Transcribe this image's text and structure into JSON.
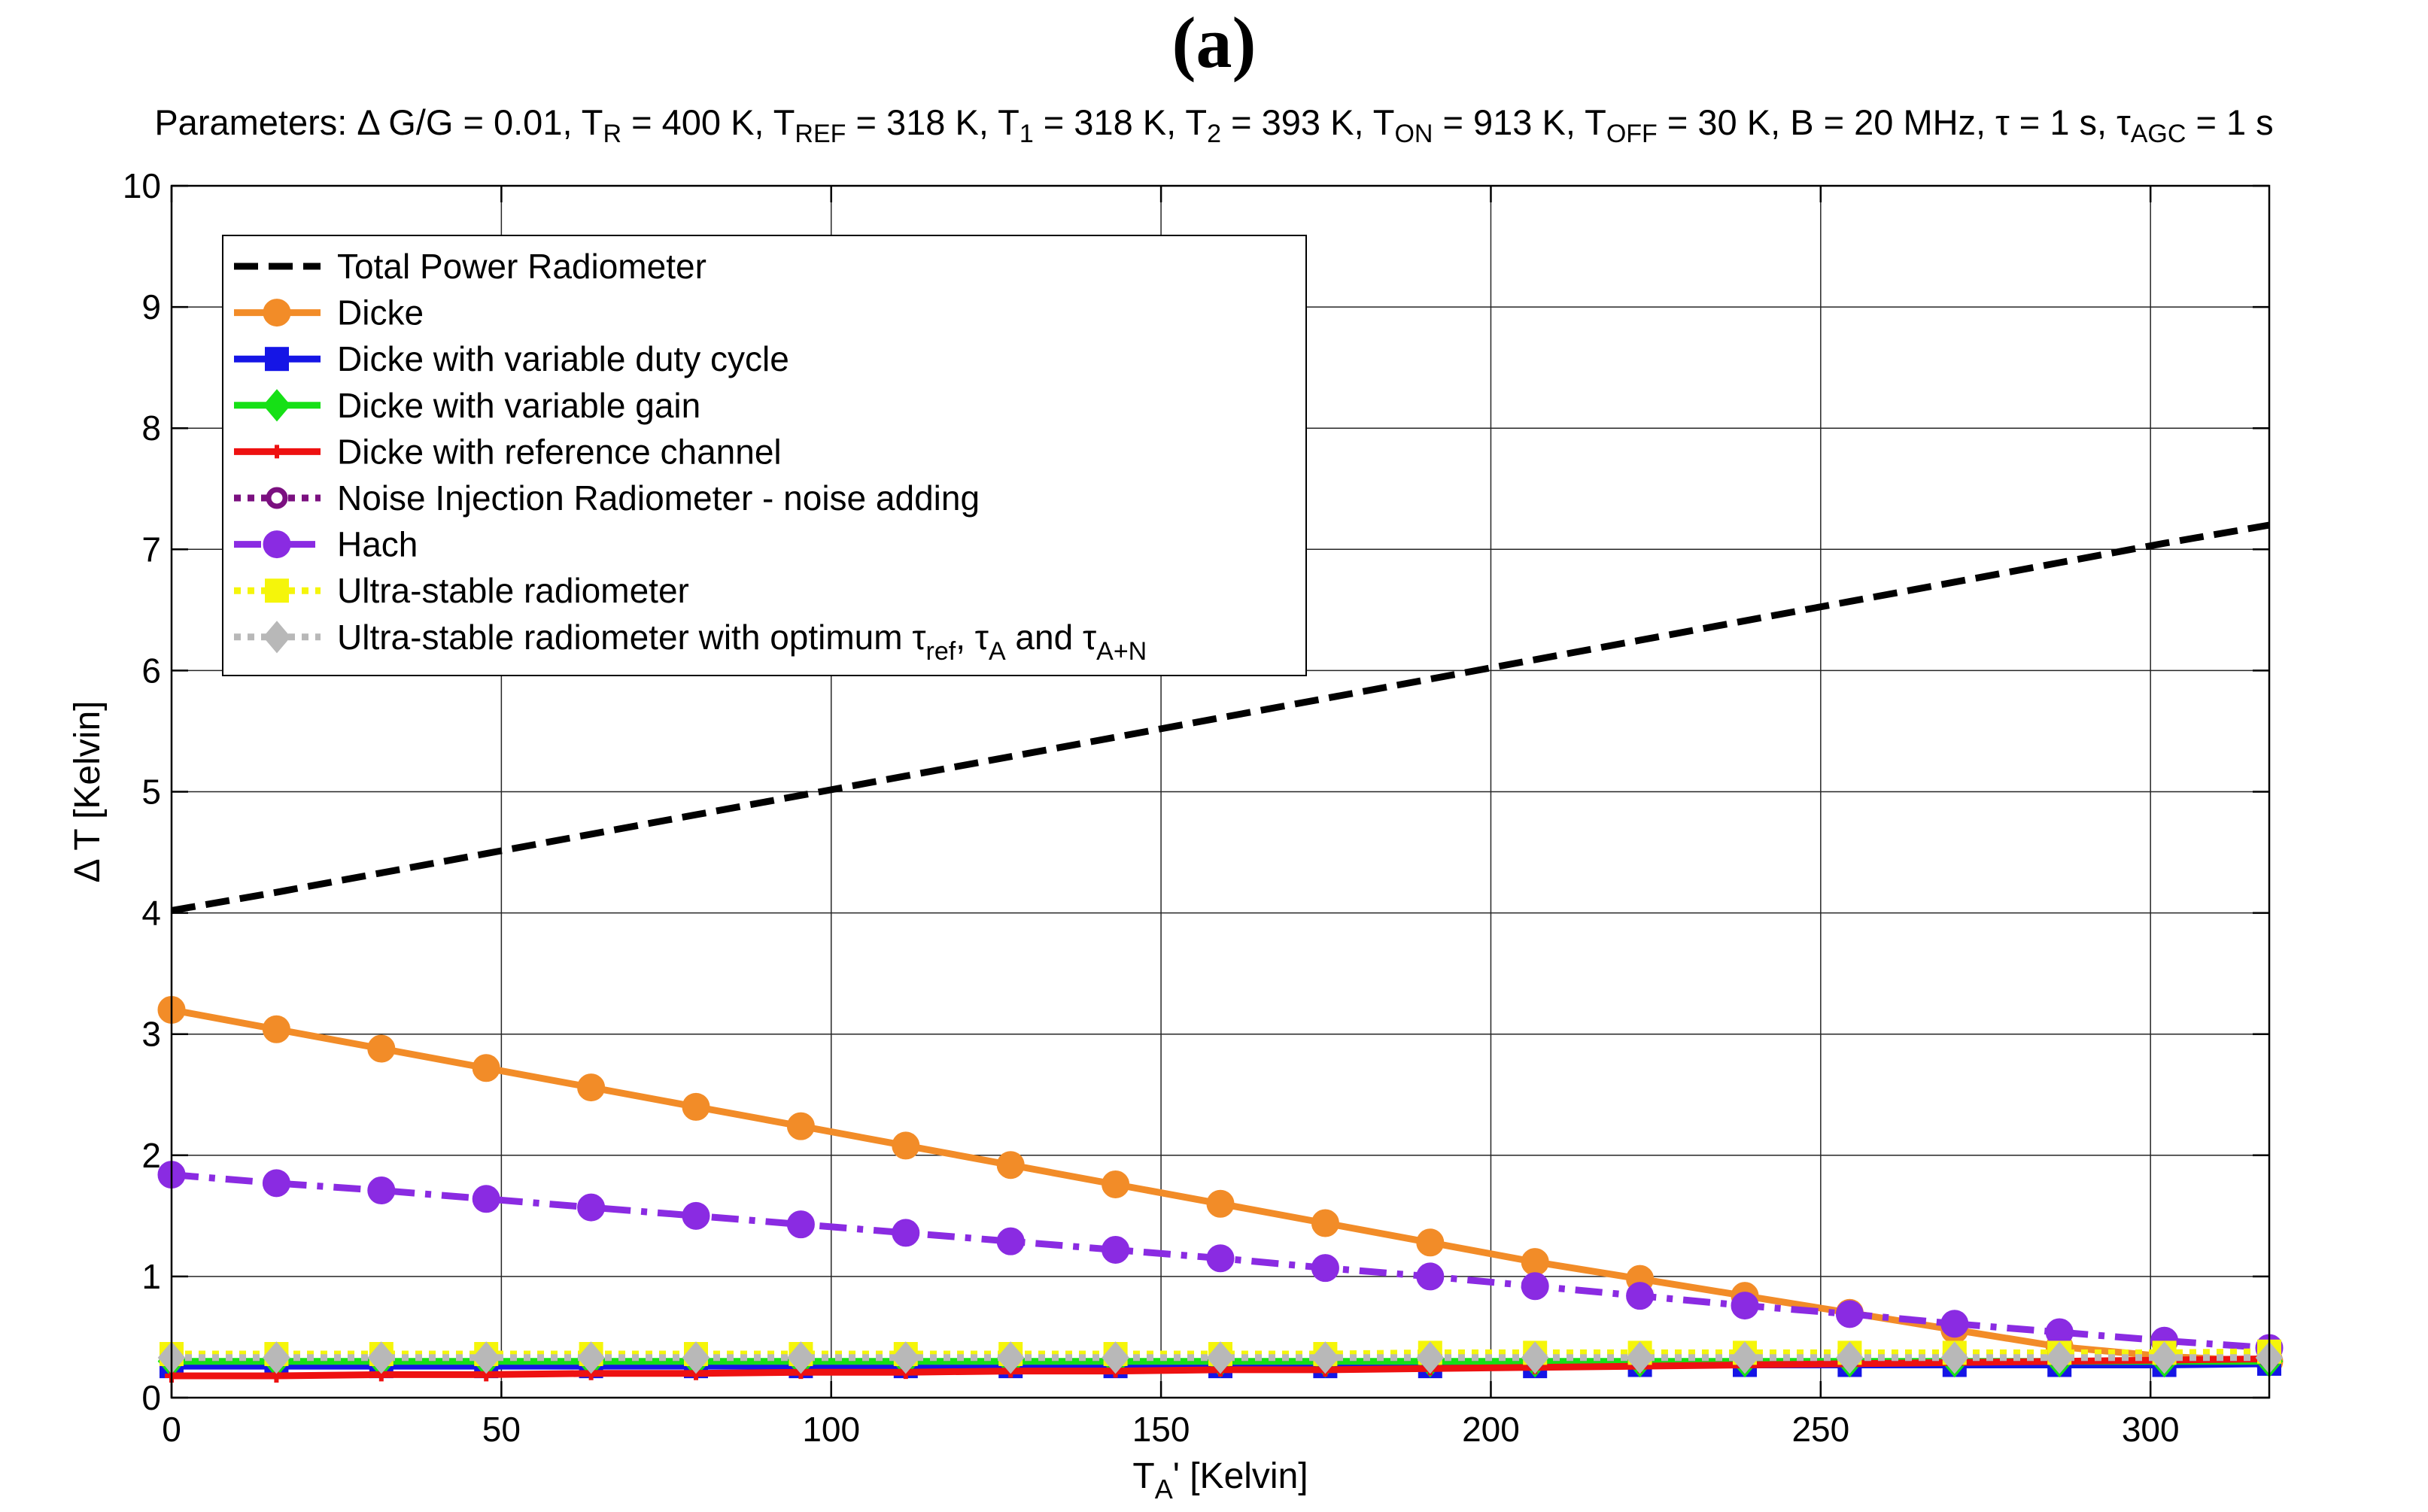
{
  "figure": {
    "panel_label": "(a)",
    "parameters": {
      "prefix": "Parameters: ",
      "items": [
        {
          "sym": "Δ G/G",
          "sub": "",
          "val": " = 0.01"
        },
        {
          "sym": "T",
          "sub": "R",
          "val": " = 400 K"
        },
        {
          "sym": "T",
          "sub": "REF",
          "val": " = 318 K"
        },
        {
          "sym": "T",
          "sub": "1",
          "val": " = 318 K"
        },
        {
          "sym": "T",
          "sub": "2",
          "val": " = 393 K"
        },
        {
          "sym": "T",
          "sub": "ON",
          "val": " = 913 K"
        },
        {
          "sym": "T",
          "sub": "OFF",
          "val": " = 30 K"
        },
        {
          "sym": "B",
          "sub": "",
          "val": " = 20 MHz"
        },
        {
          "sym": "τ",
          "sub": "",
          "val": " = 1 s"
        },
        {
          "sym": "τ",
          "sub": "AGC",
          "val": " = 1 s"
        }
      ]
    }
  },
  "chart_data": {
    "type": "line",
    "title": "(a)",
    "xlabel": {
      "main": "T",
      "sub": "A",
      "rest": "' [Kelvin]"
    },
    "ylabel": "Δ T [Kelvin]",
    "xlim": [
      0,
      318
    ],
    "ylim": [
      0,
      10
    ],
    "grid": true,
    "legend_position": "top-left",
    "x_ticks": [
      0,
      50,
      100,
      150,
      200,
      250,
      300
    ],
    "y_ticks": [
      0,
      1,
      2,
      3,
      4,
      5,
      6,
      7,
      8,
      9,
      10
    ],
    "x": [
      0,
      15.9,
      31.8,
      47.7,
      63.6,
      79.5,
      95.4,
      111.3,
      127.2,
      143.1,
      159,
      174.9,
      190.8,
      206.7,
      222.6,
      238.5,
      254.4,
      270.3,
      286.2,
      302.1,
      318
    ],
    "series": [
      {
        "name": "Total Power Radiometer",
        "color": "#000000",
        "dash": "dashed",
        "marker": "none",
        "values": [
          4.02,
          4.17,
          4.33,
          4.49,
          4.65,
          4.81,
          4.97,
          5.13,
          5.29,
          5.45,
          5.61,
          5.77,
          5.93,
          6.09,
          6.25,
          6.41,
          6.57,
          6.73,
          6.89,
          7.05,
          7.2
        ]
      },
      {
        "name": "Dicke",
        "color": "#f28c28",
        "dash": "solid",
        "marker": "circle",
        "values": [
          3.2,
          3.04,
          2.88,
          2.72,
          2.56,
          2.4,
          2.24,
          2.08,
          1.92,
          1.76,
          1.6,
          1.44,
          1.28,
          1.12,
          0.98,
          0.84,
          0.7,
          0.56,
          0.42,
          0.34,
          0.3
        ]
      },
      {
        "name": "Dicke with variable duty cycle",
        "color": "#1515e6",
        "dash": "solid",
        "marker": "square",
        "values": [
          0.26,
          0.26,
          0.26,
          0.26,
          0.26,
          0.26,
          0.26,
          0.26,
          0.26,
          0.26,
          0.26,
          0.26,
          0.26,
          0.26,
          0.27,
          0.27,
          0.27,
          0.27,
          0.27,
          0.27,
          0.28
        ]
      },
      {
        "name": "Dicke with variable gain",
        "color": "#16e016",
        "dash": "solid",
        "marker": "diamond",
        "values": [
          0.3,
          0.3,
          0.3,
          0.3,
          0.3,
          0.3,
          0.3,
          0.3,
          0.3,
          0.3,
          0.3,
          0.3,
          0.3,
          0.3,
          0.3,
          0.3,
          0.3,
          0.3,
          0.3,
          0.3,
          0.3
        ]
      },
      {
        "name": "Dicke with reference channel",
        "color": "#ee1111",
        "dash": "solid",
        "marker": "plus",
        "values": [
          0.18,
          0.18,
          0.19,
          0.19,
          0.2,
          0.2,
          0.21,
          0.21,
          0.22,
          0.22,
          0.23,
          0.23,
          0.24,
          0.25,
          0.26,
          0.27,
          0.28,
          0.29,
          0.3,
          0.31,
          0.32
        ]
      },
      {
        "name": "Noise Injection Radiometer - noise adding",
        "color": "#7b1080",
        "dash": "dotted",
        "marker": "ring",
        "values": [
          0.33,
          0.33,
          0.33,
          0.33,
          0.33,
          0.33,
          0.33,
          0.33,
          0.33,
          0.33,
          0.33,
          0.33,
          0.33,
          0.33,
          0.33,
          0.33,
          0.33,
          0.33,
          0.33,
          0.33,
          0.33
        ]
      },
      {
        "name": "Hach",
        "color": "#8a2be2",
        "dash": "dashdot",
        "marker": "circle",
        "values": [
          1.84,
          1.77,
          1.71,
          1.64,
          1.57,
          1.5,
          1.43,
          1.36,
          1.29,
          1.22,
          1.15,
          1.07,
          1.0,
          0.92,
          0.84,
          0.76,
          0.69,
          0.61,
          0.54,
          0.47,
          0.41
        ]
      },
      {
        "name": "Ultra-stable radiometer",
        "color": "#f5f50a",
        "dash": "dotted",
        "marker": "square",
        "values": [
          0.36,
          0.36,
          0.36,
          0.36,
          0.36,
          0.36,
          0.36,
          0.36,
          0.36,
          0.36,
          0.36,
          0.36,
          0.37,
          0.37,
          0.37,
          0.37,
          0.37,
          0.37,
          0.37,
          0.37,
          0.38
        ]
      },
      {
        "name": "Ultra-stable radiometer with optimum",
        "name_suffix_parts": [
          "τ",
          "ref",
          ", τ",
          "A",
          " and τ",
          "A+N"
        ],
        "color": "#b8b8b8",
        "dash": "dotted",
        "marker": "diamond",
        "values": [
          0.33,
          0.33,
          0.33,
          0.33,
          0.33,
          0.33,
          0.33,
          0.33,
          0.33,
          0.33,
          0.33,
          0.33,
          0.33,
          0.33,
          0.33,
          0.33,
          0.33,
          0.33,
          0.33,
          0.33,
          0.33
        ]
      }
    ]
  }
}
